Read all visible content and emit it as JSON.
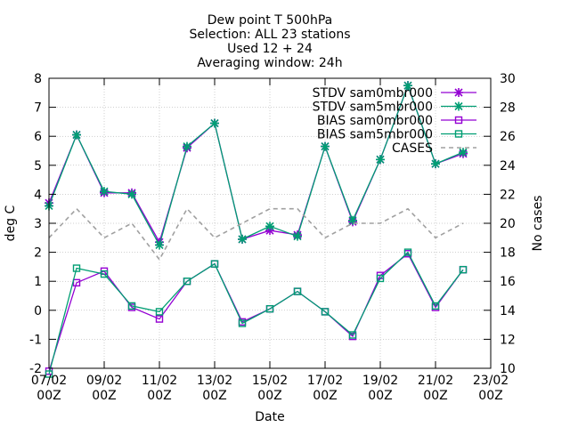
{
  "chart_data": {
    "type": "line",
    "title_lines": [
      "Dew point T 500hPa",
      "Selection: ALL      23 stations",
      "Used 12 + 24",
      "Averaging window: 24h"
    ],
    "xlabel": "Date",
    "ylabel": "deg C",
    "y2label": "No cases",
    "ylim": [
      -2,
      8
    ],
    "y2lim": [
      10,
      30
    ],
    "xlim": [
      "07/02 00Z",
      "23/02 00Z"
    ],
    "yticks": [
      "-2",
      "-1",
      "0",
      "1",
      "2",
      "3",
      "4",
      "5",
      "6",
      "7",
      "8"
    ],
    "y2ticks": [
      "10",
      "12",
      "14",
      "16",
      "18",
      "20",
      "22",
      "24",
      "26",
      "28",
      "30"
    ],
    "xticks": [
      {
        "top": "07/02",
        "bottom": "00Z"
      },
      {
        "top": "09/02",
        "bottom": "00Z"
      },
      {
        "top": "11/02",
        "bottom": "00Z"
      },
      {
        "top": "13/02",
        "bottom": "00Z"
      },
      {
        "top": "15/02",
        "bottom": "00Z"
      },
      {
        "top": "17/02",
        "bottom": "00Z"
      },
      {
        "top": "19/02",
        "bottom": "00Z"
      },
      {
        "top": "21/02",
        "bottom": "00Z"
      },
      {
        "top": "23/02",
        "bottom": "00Z"
      }
    ],
    "grid": true,
    "legend_position": "top-right",
    "x_days": [
      0,
      1,
      2,
      3,
      4,
      5,
      6,
      7,
      8,
      9,
      10,
      11,
      12,
      13,
      14,
      15
    ],
    "series": [
      {
        "name": "STDV sam0mbr000",
        "axis": "left",
        "color": "#9400d3",
        "marker": "star",
        "dash": false,
        "values": [
          3.7,
          6.05,
          4.05,
          4.05,
          2.35,
          5.6,
          6.45,
          2.45,
          2.75,
          2.6,
          5.65,
          3.05,
          5.2,
          7.75,
          5.05,
          5.4
        ]
      },
      {
        "name": "STDV sam5mbr000",
        "axis": "left",
        "color": "#009e73",
        "marker": "star",
        "dash": false,
        "values": [
          3.6,
          6.05,
          4.1,
          4.0,
          2.25,
          5.65,
          6.45,
          2.45,
          2.9,
          2.55,
          5.65,
          3.1,
          5.2,
          7.75,
          5.05,
          5.45
        ]
      },
      {
        "name": "BIAS sam0mbr000",
        "axis": "left",
        "color": "#9400d3",
        "marker": "square",
        "dash": false,
        "values": [
          -2.1,
          0.95,
          1.35,
          0.1,
          -0.3,
          1.0,
          1.6,
          -0.4,
          0.05,
          0.65,
          -0.05,
          -0.9,
          1.2,
          1.95,
          0.1,
          1.4
        ]
      },
      {
        "name": "BIAS sam5mbr000",
        "axis": "left",
        "color": "#009e73",
        "marker": "square",
        "dash": false,
        "values": [
          -2.2,
          1.45,
          1.25,
          0.15,
          -0.05,
          1.0,
          1.6,
          -0.45,
          0.05,
          0.65,
          -0.05,
          -0.85,
          1.1,
          2.0,
          0.15,
          1.4
        ]
      },
      {
        "name": "CASES",
        "axis": "right",
        "color": "#a0a0a0",
        "marker": "none",
        "dash": true,
        "values": [
          19,
          21,
          19,
          20,
          17.5,
          21,
          19,
          20,
          21,
          21,
          19,
          20,
          20,
          21,
          19,
          20
        ]
      }
    ]
  }
}
